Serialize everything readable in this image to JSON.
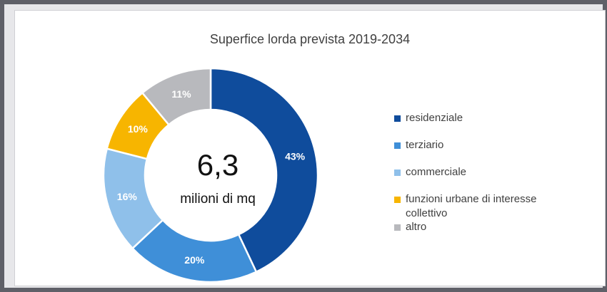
{
  "chart_data": {
    "type": "pie",
    "title": "Superfice lorda prevista 2019-2034",
    "center": {
      "value": "6,3",
      "unit": "milioni di mq"
    },
    "legend_position": "right",
    "slices": [
      {
        "label": "residenziale",
        "value": 43,
        "display": "43%",
        "color": "#0f4c9c"
      },
      {
        "label": "terziario",
        "value": 20,
        "display": "20%",
        "color": "#3f8fd8"
      },
      {
        "label": "commerciale",
        "value": 16,
        "display": "16%",
        "color": "#8fc0ea"
      },
      {
        "label": "funzioni urbane di interesse collettivo",
        "value": 10,
        "display": "10%",
        "color": "#f7b500"
      },
      {
        "label": "altro",
        "value": 11,
        "display": "11%",
        "color": "#b8b9bd"
      }
    ]
  }
}
